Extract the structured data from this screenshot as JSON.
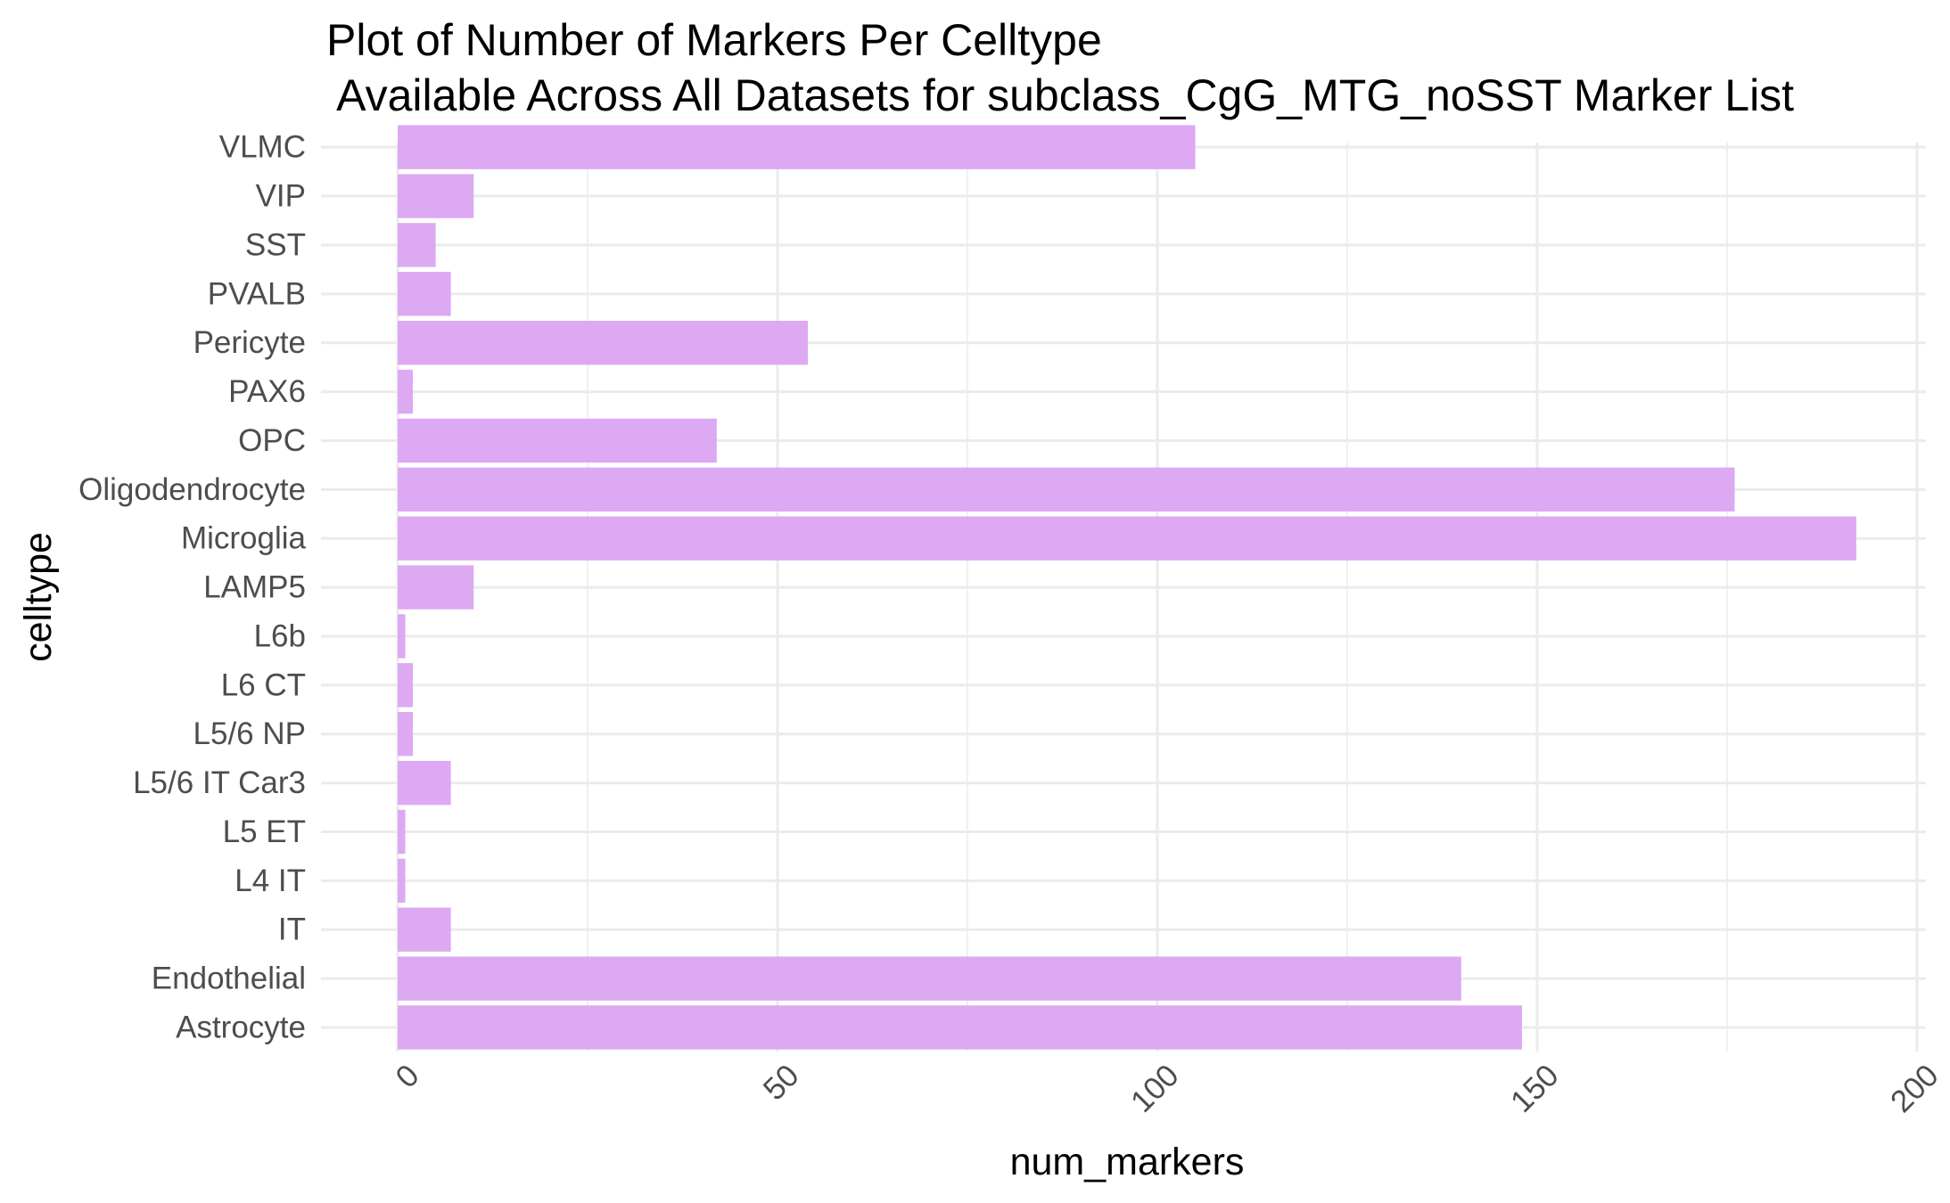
{
  "chart_data": {
    "type": "bar",
    "orientation": "horizontal",
    "title_line1": "Plot of Number of Markers Per Celltype",
    "title_line2": " Available Across All Datasets for subclass_CgG_MTG_noSST Marker List",
    "xlabel": "num_markers",
    "ylabel": "celltype",
    "xlim": [
      0,
      200
    ],
    "xticks": [
      0,
      50,
      100,
      150,
      200
    ],
    "categories": [
      "Astrocyte",
      "Endothelial",
      "IT",
      "L4 IT",
      "L5 ET",
      "L5/6 IT Car3",
      "L5/6 NP",
      "L6 CT",
      "L6b",
      "LAMP5",
      "Microglia",
      "Oligodendrocyte",
      "OPC",
      "PAX6",
      "Pericyte",
      "PVALB",
      "SST",
      "VIP",
      "VLMC"
    ],
    "values": [
      148,
      140,
      7,
      1,
      1,
      7,
      2,
      2,
      1,
      10,
      192,
      176,
      42,
      2,
      54,
      7,
      5,
      10,
      105
    ],
    "bar_color": "#dda9f3",
    "grid": true,
    "legend": "none"
  }
}
